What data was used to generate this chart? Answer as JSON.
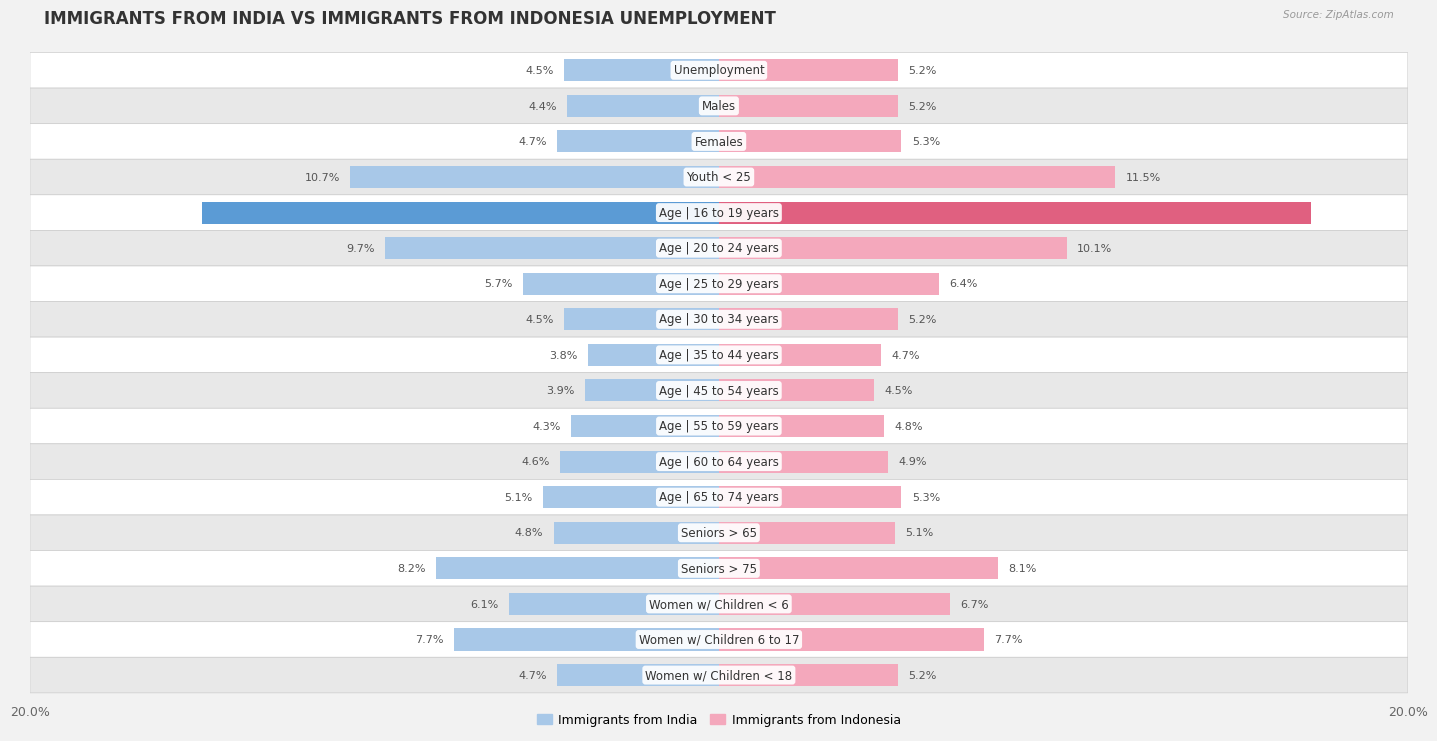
{
  "title": "IMMIGRANTS FROM INDIA VS IMMIGRANTS FROM INDONESIA UNEMPLOYMENT",
  "source": "Source: ZipAtlas.com",
  "categories": [
    "Unemployment",
    "Males",
    "Females",
    "Youth < 25",
    "Age | 16 to 19 years",
    "Age | 20 to 24 years",
    "Age | 25 to 29 years",
    "Age | 30 to 34 years",
    "Age | 35 to 44 years",
    "Age | 45 to 54 years",
    "Age | 55 to 59 years",
    "Age | 60 to 64 years",
    "Age | 65 to 74 years",
    "Seniors > 65",
    "Seniors > 75",
    "Women w/ Children < 6",
    "Women w/ Children 6 to 17",
    "Women w/ Children < 18"
  ],
  "india_values": [
    4.5,
    4.4,
    4.7,
    10.7,
    15.0,
    9.7,
    5.7,
    4.5,
    3.8,
    3.9,
    4.3,
    4.6,
    5.1,
    4.8,
    8.2,
    6.1,
    7.7,
    4.7
  ],
  "indonesia_values": [
    5.2,
    5.2,
    5.3,
    11.5,
    17.2,
    10.1,
    6.4,
    5.2,
    4.7,
    4.5,
    4.8,
    4.9,
    5.3,
    5.1,
    8.1,
    6.7,
    7.7,
    5.2
  ],
  "india_color": "#a8c8e8",
  "indonesia_color": "#f4a8bc",
  "india_highlight_color": "#5b9bd5",
  "indonesia_highlight_color": "#e06080",
  "max_val": 20.0,
  "background_color": "#f2f2f2",
  "row_color_odd": "#ffffff",
  "row_color_even": "#e8e8e8",
  "title_fontsize": 12,
  "label_fontsize": 8.5,
  "value_fontsize": 8,
  "legend_label_india": "Immigrants from India",
  "legend_label_indonesia": "Immigrants from Indonesia",
  "highlight_row": 4,
  "xtick_labels": [
    "20.0%",
    "20.0%"
  ]
}
